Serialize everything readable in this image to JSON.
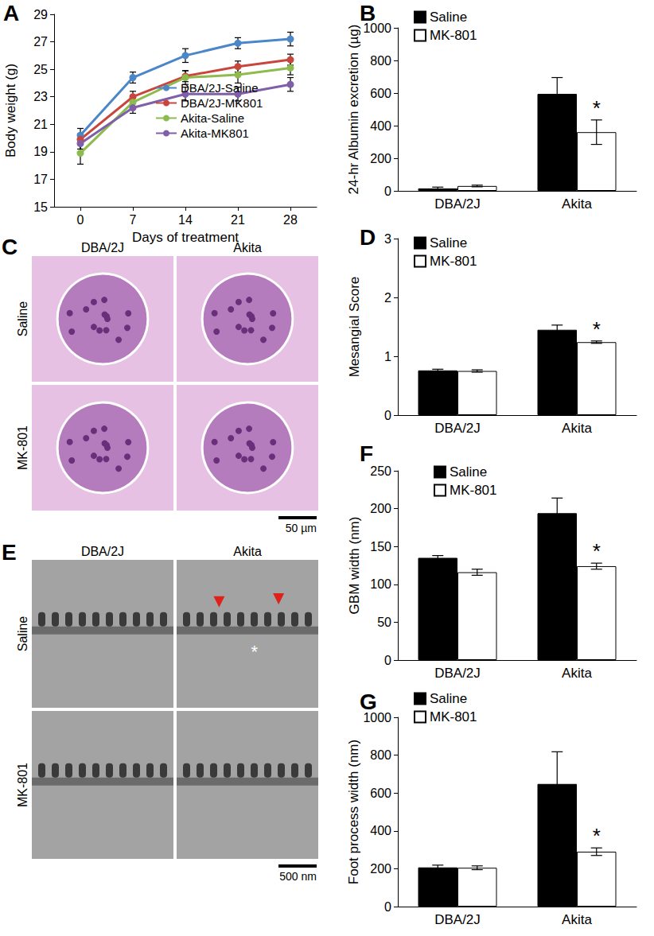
{
  "chart_data": [
    {
      "type": "line",
      "title": "A",
      "x": [
        0,
        7,
        14,
        21,
        28
      ],
      "xlim": [
        -3.5,
        31.5
      ],
      "xticks": [
        0,
        7,
        14,
        21,
        28
      ],
      "ylim": [
        15,
        29
      ],
      "yticks": [
        15,
        17,
        19,
        21,
        23,
        25,
        27,
        29
      ],
      "x_label": "Days of treatment",
      "y_label": "Body weight (g)",
      "legend": "inside",
      "grid": false,
      "series": [
        {
          "name": "DBA/2J-Saline",
          "color": "#4a86c8",
          "marker": "circle",
          "values": [
            20.2,
            24.4,
            26.0,
            26.9,
            27.2
          ],
          "errors": [
            0.5,
            0.4,
            0.5,
            0.4,
            0.5
          ]
        },
        {
          "name": "DBA/2J-MK801",
          "color": "#c9463d",
          "marker": "circle",
          "values": [
            19.9,
            23.0,
            24.5,
            25.2,
            25.7
          ],
          "errors": [
            0.4,
            0.4,
            0.4,
            0.4,
            0.4
          ]
        },
        {
          "name": "Akita-Saline",
          "color": "#8dbb4e",
          "marker": "circle",
          "values": [
            18.9,
            22.6,
            24.4,
            24.6,
            25.1
          ],
          "errors": [
            0.8,
            0.5,
            0.5,
            0.6,
            0.5
          ]
        },
        {
          "name": "Akita-MK801",
          "color": "#7f5fa8",
          "marker": "circle",
          "values": [
            19.6,
            22.2,
            23.2,
            23.2,
            23.9
          ],
          "errors": [
            0.4,
            0.4,
            0.5,
            0.5,
            0.5
          ]
        }
      ]
    },
    {
      "type": "bar",
      "title": "B",
      "categories": [
        "DBA/2J",
        "Akita"
      ],
      "ylim": [
        0,
        1000
      ],
      "yticks": [
        0,
        200,
        400,
        600,
        800,
        1000
      ],
      "y_label": "24-hr Albumin excretion (µg)",
      "legend": "top-left",
      "grid": false,
      "series": [
        {
          "name": "Saline",
          "color": "#000000",
          "values": [
            15,
            595
          ],
          "errors": [
            8,
            100
          ]
        },
        {
          "name": "MK-801",
          "color": "#ffffff",
          "values": [
            30,
            360
          ],
          "errors": [
            5,
            75
          ]
        }
      ],
      "annotations": [
        {
          "text": "*",
          "category": "Akita",
          "series": "MK-801"
        }
      ]
    },
    {
      "type": "bar",
      "title": "D",
      "categories": [
        "DBA/2J",
        "Akita"
      ],
      "ylim": [
        0,
        3
      ],
      "yticks": [
        0,
        1,
        2,
        3
      ],
      "y_label": "Mesangial Score",
      "legend": "top-left",
      "grid": false,
      "series": [
        {
          "name": "Saline",
          "color": "#000000",
          "values": [
            0.76,
            1.45
          ],
          "errors": [
            0.02,
            0.08
          ]
        },
        {
          "name": "MK-801",
          "color": "#ffffff",
          "values": [
            0.75,
            1.24
          ],
          "errors": [
            0.02,
            0.02
          ]
        }
      ],
      "annotations": [
        {
          "text": "*",
          "category": "Akita",
          "series": "MK-801"
        }
      ]
    },
    {
      "type": "bar",
      "title": "F",
      "categories": [
        "DBA/2J",
        "Akita"
      ],
      "ylim": [
        0,
        250
      ],
      "yticks": [
        0,
        50,
        100,
        150,
        200,
        250
      ],
      "y_label": "GBM width (nm)",
      "legend": "top-left",
      "grid": false,
      "series": [
        {
          "name": "Saline",
          "color": "#000000",
          "values": [
            135,
            194
          ],
          "errors": [
            3,
            20
          ]
        },
        {
          "name": "MK-801",
          "color": "#ffffff",
          "values": [
            116,
            124
          ],
          "errors": [
            4,
            4
          ]
        }
      ],
      "annotations": [
        {
          "text": "*",
          "category": "Akita",
          "series": "MK-801"
        }
      ]
    },
    {
      "type": "bar",
      "title": "G",
      "categories": [
        "DBA/2J",
        "Akita"
      ],
      "ylim": [
        0,
        1000
      ],
      "yticks": [
        0,
        200,
        400,
        600,
        800,
        1000
      ],
      "y_label": "Foot process width (nm)",
      "legend": "top-left",
      "grid": false,
      "series": [
        {
          "name": "Saline",
          "color": "#000000",
          "values": [
            207,
            648
          ],
          "errors": [
            12,
            170
          ]
        },
        {
          "name": "MK-801",
          "color": "#ffffff",
          "values": [
            205,
            290
          ],
          "errors": [
            10,
            20
          ]
        }
      ],
      "annotations": [
        {
          "text": "*",
          "category": "Akita",
          "series": "MK-801"
        }
      ]
    }
  ],
  "images": [
    {
      "title": "C",
      "columns": [
        "DBA/2J",
        "Akita"
      ],
      "rows": [
        "Saline",
        "MK-801"
      ],
      "scale_bar": "50 µm"
    },
    {
      "title": "E",
      "columns": [
        "DBA/2J",
        "Akita"
      ],
      "rows": [
        "Saline",
        "MK-801"
      ],
      "scale_bar": "500 nm",
      "annotations": [
        {
          "text": "*",
          "row": "Saline",
          "column": "Akita"
        }
      ]
    }
  ]
}
